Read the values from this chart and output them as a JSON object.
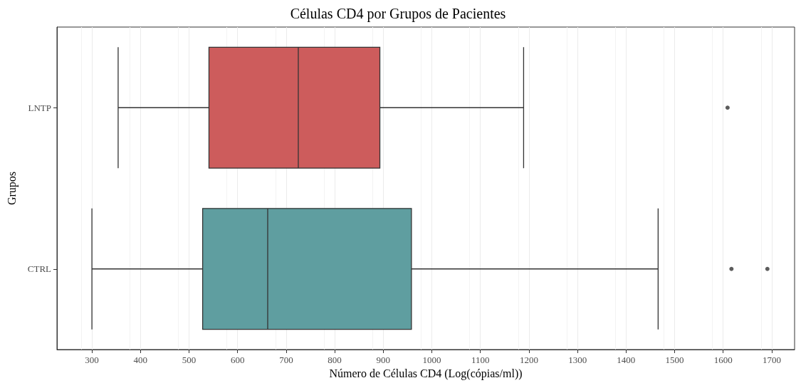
{
  "chart_data": {
    "type": "box",
    "orientation": "horizontal",
    "title": "Células CD4 por Grupos de Pacientes",
    "xlabel": "Número de Células CD4 (Log(cópias/ml))",
    "ylabel": "Grupos",
    "categories": [
      "LNTP",
      "CTRL"
    ],
    "colors": [
      "#cd5c5c",
      "#5f9ea0"
    ],
    "boxes": [
      {
        "low": 354,
        "q1": 541,
        "median": 725,
        "q3": 893,
        "high": 1189,
        "outliers": [
          1609
        ]
      },
      {
        "low": 300,
        "q1": 528,
        "median": 662,
        "q3": 958,
        "high": 1466,
        "outliers": [
          1617,
          1691
        ]
      }
    ],
    "xlim": [
      228,
      1747
    ],
    "xticks": [
      300,
      400,
      500,
      600,
      700,
      800,
      900,
      1000,
      1100,
      1200,
      1300,
      1400,
      1500,
      1600,
      1700
    ],
    "grid": "x"
  }
}
